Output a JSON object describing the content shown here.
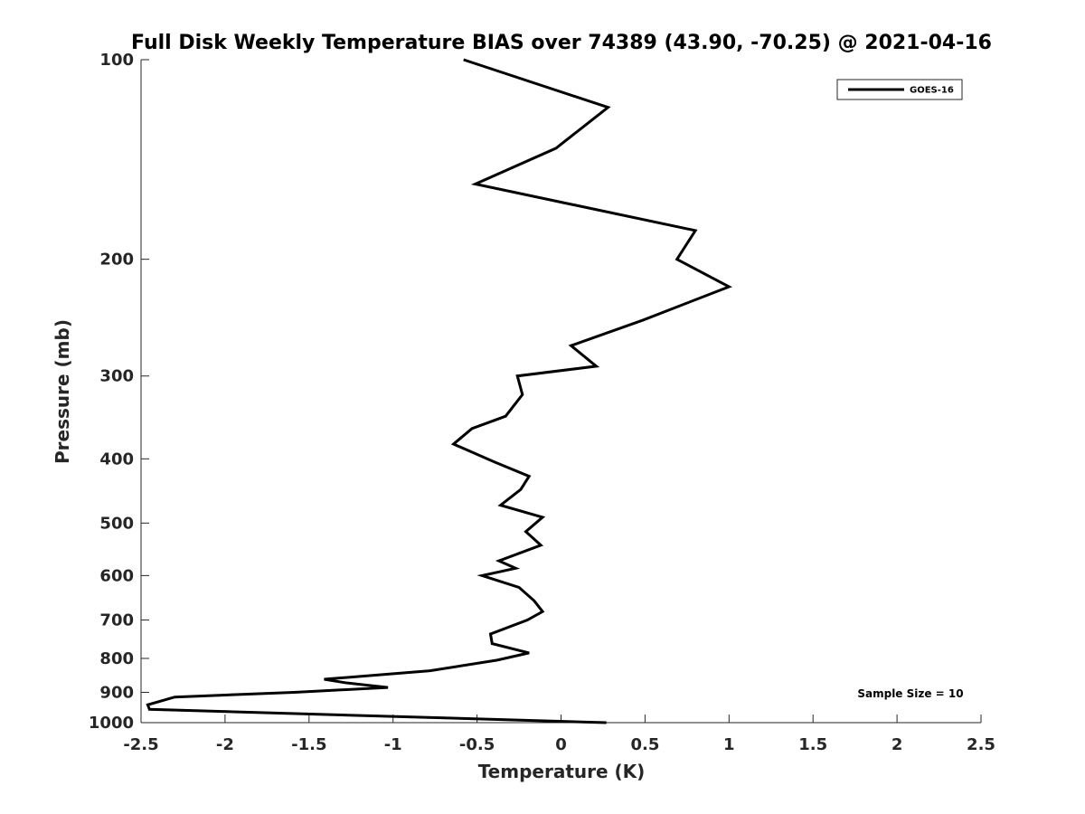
{
  "chart_data": {
    "type": "line",
    "title": "Full Disk Weekly Temperature BIAS over 74389 (43.90, -70.25) @ 2021-04-16",
    "xlabel": "Temperature (K)",
    "ylabel": "Pressure (mb)",
    "xlim": [
      -2.5,
      2.5
    ],
    "ylim": [
      1000,
      100
    ],
    "y_scale": "log",
    "y_reversed": true,
    "grid": false,
    "legend_position": "top-right",
    "xticks": [
      -2.5,
      -2,
      -1.5,
      -1,
      -0.5,
      0,
      0.5,
      1,
      1.5,
      2,
      2.5
    ],
    "xtick_labels": [
      "-2.5",
      "-2",
      "-1.5",
      "-1",
      "-0.5",
      "0",
      "0.5",
      "1",
      "1.5",
      "2",
      "2.5"
    ],
    "yticks": [
      100,
      200,
      300,
      400,
      500,
      600,
      700,
      800,
      900,
      1000
    ],
    "ytick_labels": [
      "100",
      "200",
      "300",
      "400",
      "500",
      "600",
      "700",
      "800",
      "900",
      "1000"
    ],
    "series": [
      {
        "name": "GOES-16",
        "color": "#000000",
        "x": [
          -0.58,
          0.28,
          -0.03,
          -0.51,
          0.8,
          0.69,
          1.0,
          0.49,
          0.06,
          0.21,
          -0.26,
          -0.23,
          -0.33,
          -0.53,
          -0.64,
          -0.39,
          -0.19,
          -0.24,
          -0.36,
          -0.11,
          -0.21,
          -0.12,
          -0.37,
          -0.27,
          -0.47,
          -0.25,
          -0.16,
          -0.11,
          -0.2,
          -0.42,
          -0.41,
          -0.19,
          -0.38,
          -0.78,
          -1.41,
          -1.29,
          -1.03,
          -1.59,
          -2.3,
          -2.46,
          -2.45,
          0.27
        ],
        "y": [
          100,
          118,
          136,
          154,
          181,
          200,
          220,
          247,
          270,
          290,
          300,
          320,
          345,
          360,
          380,
          405,
          425,
          445,
          470,
          490,
          515,
          540,
          570,
          585,
          600,
          625,
          655,
          680,
          700,
          735,
          760,
          785,
          805,
          835,
          860,
          870,
          885,
          900,
          915,
          940,
          955,
          1000
        ]
      }
    ],
    "annotations": [
      "Sample Size = 10"
    ]
  }
}
